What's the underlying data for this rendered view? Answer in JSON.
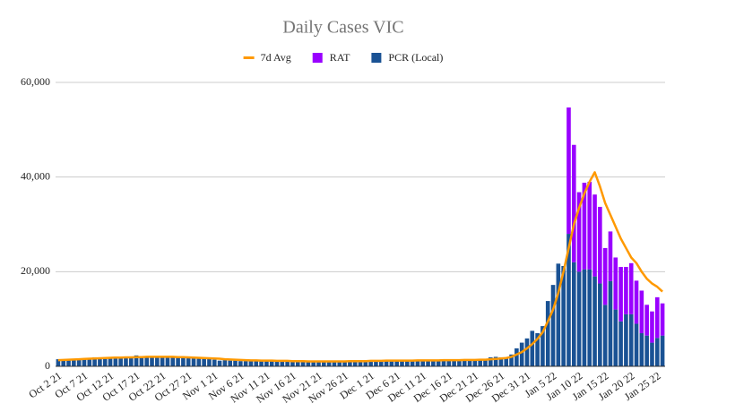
{
  "chart_data": {
    "type": "bar",
    "title": "Daily Cases VIC",
    "categories": [
      "Oct 2 21",
      null,
      null,
      null,
      null,
      "Oct 7 21",
      null,
      null,
      null,
      null,
      "Oct 12 21",
      null,
      null,
      null,
      null,
      "Oct 17 21",
      null,
      null,
      null,
      null,
      "Oct 22 21",
      null,
      null,
      null,
      null,
      "Oct 27 21",
      null,
      null,
      null,
      null,
      "Nov 1 21",
      null,
      null,
      null,
      null,
      "Nov 6 21",
      null,
      null,
      null,
      null,
      "Nov 11 21",
      null,
      null,
      null,
      null,
      "Nov 16 21",
      null,
      null,
      null,
      null,
      "Nov 21 21",
      null,
      null,
      null,
      null,
      "Nov 26 21",
      null,
      null,
      null,
      null,
      "Dec 1 21",
      null,
      null,
      null,
      null,
      "Dec 6 21",
      null,
      null,
      null,
      null,
      "Dec 11 21",
      null,
      null,
      null,
      null,
      "Dec 16 21",
      null,
      null,
      null,
      null,
      "Dec 21 21",
      null,
      null,
      null,
      null,
      "Dec 26 21",
      null,
      null,
      null,
      null,
      "Dec 31 21",
      null,
      null,
      null,
      null,
      "Jan 5 22",
      null,
      null,
      null,
      null,
      "Jan 10 22",
      null,
      null,
      null,
      null,
      "Jan 15 22",
      null,
      null,
      null,
      null,
      "Jan 20 22",
      null,
      null,
      null,
      null,
      "Jan 25 22",
      null
    ],
    "series": [
      {
        "name": "PCR (Local)",
        "type": "bar",
        "color": "#1a5294",
        "values": [
          1500,
          1200,
          1400,
          1600,
          1500,
          1700,
          1700,
          1900,
          1800,
          1900,
          1900,
          1900,
          2000,
          1800,
          1900,
          2300,
          1900,
          1900,
          2000,
          1900,
          2000,
          2100,
          1900,
          1900,
          1900,
          1800,
          1800,
          1700,
          1700,
          1700,
          1400,
          1200,
          1300,
          1200,
          1200,
          1100,
          1100,
          1200,
          1200,
          1200,
          1200,
          1100,
          1100,
          1100,
          1000,
          1000,
          1000,
          1000,
          1000,
          1000,
          1000,
          1000,
          1000,
          1000,
          1000,
          1100,
          1100,
          1100,
          1100,
          1100,
          1200,
          1200,
          1200,
          1200,
          1200,
          1200,
          1300,
          1200,
          1200,
          1200,
          1300,
          1300,
          1300,
          1300,
          1300,
          1300,
          1300,
          1400,
          1400,
          1300,
          1300,
          1500,
          1500,
          1900,
          2000,
          1900,
          1800,
          2500,
          3800,
          5000,
          5900,
          7500,
          7000,
          8500,
          13800,
          17200,
          21700,
          21200,
          28000,
          22000,
          20000,
          20500,
          20500,
          19000,
          17500,
          13000,
          18000,
          12000,
          9500,
          11000,
          11000,
          9000,
          7000,
          6500,
          5000,
          6000,
          6500
        ]
      },
      {
        "name": "RAT",
        "type": "bar",
        "color": "#9900ff",
        "values": [
          null,
          null,
          null,
          null,
          null,
          null,
          null,
          null,
          null,
          null,
          null,
          null,
          null,
          null,
          null,
          null,
          null,
          null,
          null,
          null,
          null,
          null,
          null,
          null,
          null,
          null,
          null,
          null,
          null,
          null,
          null,
          null,
          null,
          null,
          null,
          null,
          null,
          null,
          null,
          null,
          null,
          null,
          null,
          null,
          null,
          null,
          null,
          null,
          null,
          null,
          null,
          null,
          null,
          null,
          null,
          null,
          null,
          null,
          null,
          null,
          null,
          null,
          null,
          null,
          null,
          null,
          null,
          null,
          null,
          null,
          null,
          null,
          null,
          null,
          null,
          null,
          null,
          null,
          null,
          null,
          null,
          null,
          null,
          null,
          null,
          null,
          null,
          null,
          null,
          null,
          null,
          null,
          null,
          null,
          null,
          null,
          null,
          null,
          26700,
          24800,
          16800,
          18300,
          18500,
          17300,
          16200,
          12000,
          10500,
          11000,
          11500,
          10000,
          10800,
          9100,
          9000,
          6500,
          6600,
          8600,
          6800
        ]
      },
      {
        "name": "7d Avg",
        "type": "line",
        "color": "#ff9900",
        "values": [
          1300,
          1350,
          1400,
          1450,
          1500,
          1550,
          1600,
          1650,
          1700,
          1750,
          1800,
          1850,
          1850,
          1900,
          1900,
          1950,
          1950,
          2000,
          2000,
          2000,
          2000,
          2000,
          2000,
          1950,
          1950,
          1900,
          1850,
          1800,
          1750,
          1700,
          1650,
          1600,
          1500,
          1450,
          1400,
          1350,
          1300,
          1250,
          1250,
          1200,
          1200,
          1200,
          1150,
          1150,
          1150,
          1100,
          1100,
          1100,
          1050,
          1050,
          1050,
          1050,
          1050,
          1050,
          1050,
          1050,
          1100,
          1100,
          1100,
          1100,
          1150,
          1150,
          1150,
          1200,
          1200,
          1200,
          1200,
          1200,
          1200,
          1250,
          1250,
          1250,
          1250,
          1250,
          1300,
          1300,
          1300,
          1300,
          1350,
          1350,
          1350,
          1400,
          1400,
          1500,
          1550,
          1650,
          1750,
          2000,
          2500,
          3000,
          3800,
          4700,
          5800,
          7200,
          9500,
          12000,
          15500,
          20000,
          25000,
          30000,
          33500,
          36500,
          39000,
          41000,
          38000,
          34500,
          32000,
          29500,
          27000,
          25000,
          23000,
          21800,
          20000,
          18500,
          17500,
          16800,
          15800
        ]
      }
    ],
    "ylim": [
      0,
      60000
    ],
    "yticks": [
      0,
      {
        "value": 20000,
        "label": "20,000"
      },
      {
        "value": 40000,
        "label": "40,000"
      },
      {
        "value": 60000,
        "label": "60,000"
      }
    ],
    "grid": true,
    "legend": "top"
  }
}
